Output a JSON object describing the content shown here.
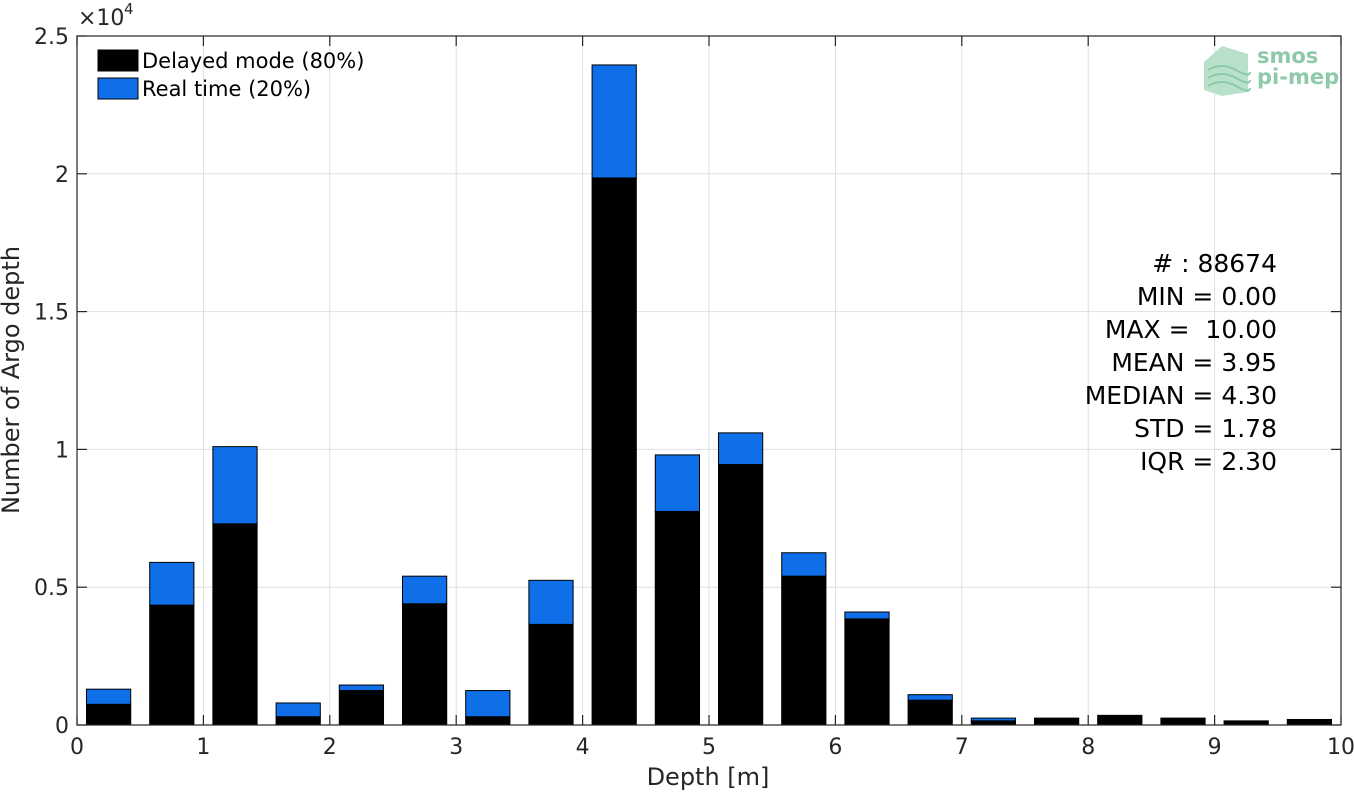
{
  "chart_data": {
    "type": "bar",
    "stacked": true,
    "xlabel": "Depth [m]",
    "ylabel": "Number of Argo depth",
    "y_exponent_label": "×10",
    "y_exponent_power": "4",
    "y_scale_factor": 10000,
    "xlim": [
      0,
      10
    ],
    "ylim": [
      0,
      25000
    ],
    "x_ticks": [
      0,
      1,
      2,
      3,
      4,
      5,
      6,
      7,
      8,
      9,
      10
    ],
    "x_tick_labels": [
      "0",
      "1",
      "2",
      "3",
      "4",
      "5",
      "6",
      "7",
      "8",
      "9",
      "10"
    ],
    "y_ticks": [
      0,
      5000,
      10000,
      15000,
      20000,
      25000
    ],
    "y_tick_labels": [
      "0",
      "0.5",
      "1",
      "1.5",
      "2",
      "2.5"
    ],
    "grid": true,
    "legend_position": "top-left",
    "bin_width": 0.5,
    "bar_width_fraction": 0.7,
    "x": [
      0.25,
      0.75,
      1.25,
      1.75,
      2.25,
      2.75,
      3.25,
      3.75,
      4.25,
      4.75,
      5.25,
      5.75,
      6.25,
      6.75,
      7.25,
      7.75,
      8.25,
      8.75,
      9.25,
      9.75
    ],
    "series": [
      {
        "name": "Delayed mode (80%)",
        "color": "#000000",
        "values": [
          750,
          4350,
          7300,
          300,
          1250,
          4400,
          300,
          3650,
          19850,
          7750,
          9450,
          5400,
          3850,
          900,
          150,
          250,
          350,
          250,
          150,
          200
        ]
      },
      {
        "name": "Real time (20%)",
        "color": "#0f6fe8",
        "values": [
          550,
          1550,
          2800,
          500,
          200,
          1000,
          950,
          1600,
          4100,
          2050,
          1150,
          850,
          250,
          200,
          100,
          0,
          0,
          0,
          0,
          0
        ]
      }
    ],
    "annotations": [
      "# : 88674",
      "MIN = 0.00",
      "MAX =  10.00",
      "MEAN = 3.95",
      "MEDIAN = 4.30",
      "STD = 1.78",
      "IQR = 2.30"
    ],
    "colors": {
      "axis": "#262626",
      "grid": "#dfdfdf",
      "bar_edge": "#000000",
      "logo": "#8ec9a9"
    }
  },
  "logo": {
    "line1": "smos",
    "line2": "pi-mep"
  }
}
